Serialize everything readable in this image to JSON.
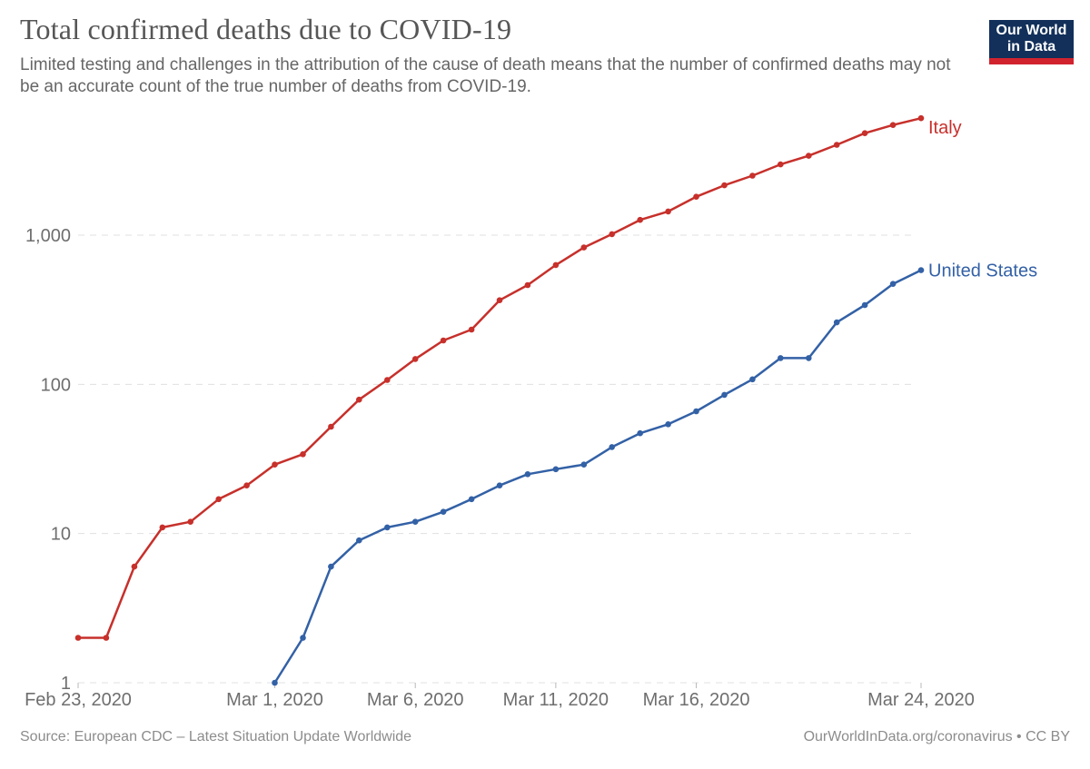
{
  "logo": {
    "line1": "Our World",
    "line2": "in Data"
  },
  "chart_data": {
    "type": "line",
    "title": "Total confirmed deaths due to COVID-19",
    "subtitle": "Limited testing and challenges in the attribution of the cause of death means that the number of confirmed deaths may not be an accurate count of the true number of deaths from COVID-19.",
    "grid": true,
    "legend_position": "end-of-line",
    "y_axis": {
      "scale": "log10",
      "tick_values": [
        1,
        10,
        100,
        1000
      ],
      "tick_labels": [
        "1",
        "10",
        "100",
        "1,000"
      ],
      "range": [
        1,
        6077
      ]
    },
    "x_axis": {
      "tick_days": [
        0,
        7,
        12,
        17,
        22,
        30
      ],
      "tick_labels": [
        "Feb 23, 2020",
        "Mar 1, 2020",
        "Mar 6, 2020",
        "Mar 11, 2020",
        "Mar 16, 2020",
        "Mar 24, 2020"
      ]
    },
    "dates": [
      "Feb 23, 2020",
      "Feb 24, 2020",
      "Feb 25, 2020",
      "Feb 26, 2020",
      "Feb 27, 2020",
      "Feb 28, 2020",
      "Feb 29, 2020",
      "Mar 1, 2020",
      "Mar 2, 2020",
      "Mar 3, 2020",
      "Mar 4, 2020",
      "Mar 5, 2020",
      "Mar 6, 2020",
      "Mar 7, 2020",
      "Mar 8, 2020",
      "Mar 9, 2020",
      "Mar 10, 2020",
      "Mar 11, 2020",
      "Mar 12, 2020",
      "Mar 13, 2020",
      "Mar 14, 2020",
      "Mar 15, 2020",
      "Mar 16, 2020",
      "Mar 17, 2020",
      "Mar 18, 2020",
      "Mar 19, 2020",
      "Mar 20, 2020",
      "Mar 21, 2020",
      "Mar 22, 2020",
      "Mar 23, 2020",
      "Mar 24, 2020"
    ],
    "series": [
      {
        "name": "Italy",
        "color": "#c7302b",
        "start_day": 0,
        "values": [
          2,
          2,
          6,
          11,
          12,
          17,
          21,
          29,
          34,
          52,
          79,
          107,
          148,
          197,
          233,
          366,
          463,
          631,
          827,
          1016,
          1266,
          1441,
          1809,
          2158,
          2503,
          2978,
          3405,
          4032,
          4825,
          5476,
          6077
        ]
      },
      {
        "name": "United States",
        "color": "#3361a6",
        "start_day": 7,
        "values": [
          1,
          2,
          6,
          9,
          11,
          12,
          14,
          17,
          21,
          25,
          27,
          29,
          38,
          47,
          54,
          66,
          85,
          108,
          150,
          150,
          260,
          340,
          471,
          582
        ]
      }
    ]
  },
  "footer": {
    "source": "Source: European CDC – Latest Situation Update Worldwide",
    "attribution": "OurWorldInData.org/coronavirus • CC BY"
  }
}
